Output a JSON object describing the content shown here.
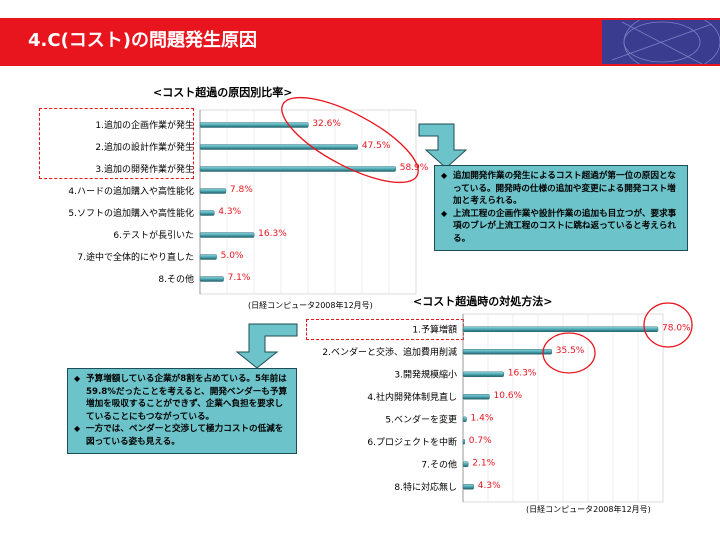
{
  "title": "4.C(コスト)の問題発生原因",
  "chart_data": [
    {
      "type": "bar",
      "orientation": "horizontal",
      "title": "<コスト超過の原因別比率>",
      "categories": [
        "1.追加の企画作業が発生",
        "2.追加の設計作業が発生",
        "3.追加の開発作業が発生",
        "4.ハードの追加購入や高性能化",
        "5.ソフトの追加購入や高性能化",
        "6.テストが長引いた",
        "7.途中で全体的にやり直した",
        "8.その他"
      ],
      "values": [
        32.6,
        47.5,
        58.9,
        7.8,
        4.3,
        16.3,
        5.0,
        7.1
      ],
      "value_labels": [
        "32.6%",
        "47.5%",
        "58.9%",
        "7.8%",
        "4.3%",
        "16.3%",
        "5.0%",
        "7.1%"
      ],
      "xlim": [
        0,
        65
      ],
      "source": "(日経コンピュータ2008年12月号)"
    },
    {
      "type": "bar",
      "orientation": "horizontal",
      "title": "<コスト超過時の対処方法>",
      "categories": [
        "1.予算増額",
        "2.ベンダーと交渉、追加費用削減",
        "3.開発規模縮小",
        "4.社内開発体制見直し",
        "5.ベンダーを変更",
        "6.プロジェクトを中断",
        "7.その他",
        "8.特に対応無し"
      ],
      "values": [
        78.0,
        35.5,
        16.3,
        10.6,
        1.4,
        0.7,
        2.1,
        4.3
      ],
      "value_labels": [
        "78.0%",
        "35.5%",
        "16.3%",
        "10.6%",
        "1.4%",
        "0.7%",
        "2.1%",
        "4.3%"
      ],
      "xlim": [
        0,
        80
      ],
      "source": "(日経コンピュータ2008年12月号)"
    }
  ],
  "notes": {
    "right": [
      "追加開発作業の発生によるコスト超過が第一位の原因となっている。開発時の仕様の追加や変更による開発コスト増加と考えられる。",
      "上流工程の企画作業や設計作業の追加も目立つが、要求事項のブレが上流工程のコストに跳ね返っていると考えられる。"
    ],
    "left": [
      "予算増額している企業が8割を占めている。5年前は59.8%だったことを考えると、開発ベンダーも予算増加を吸収することができず、企業へ負担を要求していることにもつながっている。",
      "一方では、ベンダーと交渉して極力コストの低減を図っている姿も見える。"
    ]
  },
  "colors": {
    "title_bar": "#e8141e",
    "bar_fill": "#4fa9b5",
    "bar_dark": "#1f5e68",
    "value_text": "#e8141e",
    "note_bg": "#6cc3c9"
  }
}
